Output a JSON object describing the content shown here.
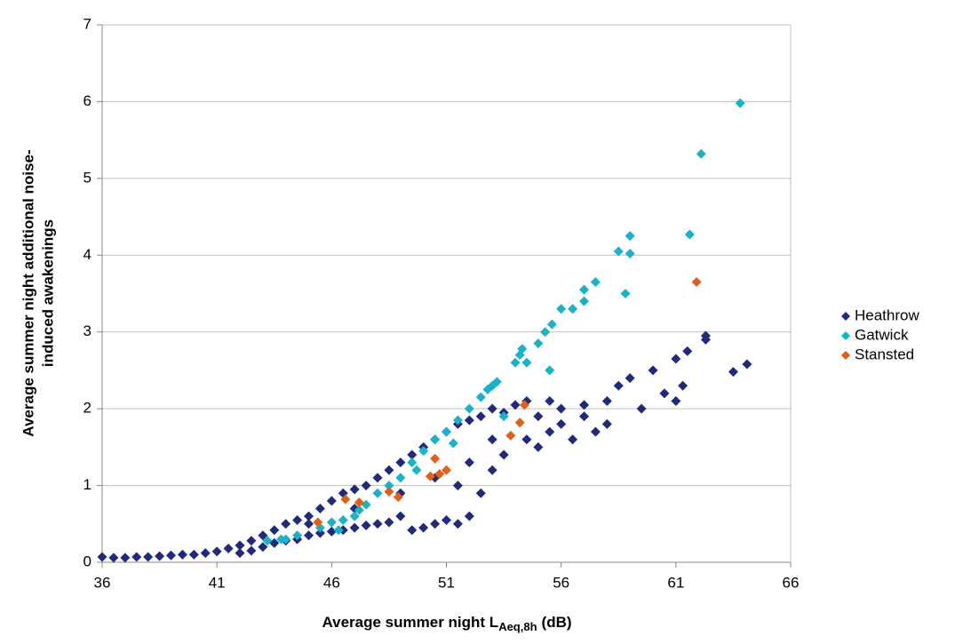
{
  "chart_data": {
    "type": "scatter",
    "x_label": [
      "Average summer night L",
      "Aeq,8h",
      "(dB)"
    ],
    "y_label": [
      "Average summer night additional noise-",
      "induced awakenings"
    ],
    "xlim": [
      36,
      66
    ],
    "xticks": [
      36,
      41,
      46,
      51,
      56,
      61,
      66
    ],
    "ylim": [
      0,
      7
    ],
    "yticks": [
      0,
      1,
      2,
      3,
      4,
      5,
      6,
      7
    ],
    "grid": true,
    "legend": "right",
    "series": [
      {
        "name": "Heathrow",
        "color": "#1f2a7c",
        "x": [
          36,
          36.5,
          37,
          37.5,
          38,
          38.5,
          39,
          39.5,
          40,
          40.5,
          41,
          41.5,
          42,
          42,
          42.5,
          42.5,
          43,
          43,
          43.5,
          43.5,
          44,
          44,
          44.5,
          44.5,
          45,
          45,
          45.5,
          45.5,
          46,
          46,
          46.5,
          46.5,
          47,
          47,
          47.5,
          47.5,
          48,
          48,
          48.5,
          48.5,
          49,
          49,
          49.5,
          49.5,
          50,
          50,
          50.5,
          50.5,
          51,
          51,
          51.5,
          51.5,
          52,
          52,
          52.5,
          52.5,
          53,
          53,
          53.5,
          53.5,
          54,
          54.5,
          54.5,
          55,
          55.5,
          55.5,
          56,
          56.5,
          57,
          57.5,
          58,
          58.5,
          58,
          59,
          59.5,
          60,
          60.5,
          61,
          61,
          61.3,
          61.5,
          62.3,
          62.3,
          63.5,
          64.1,
          52,
          50.5,
          49,
          47,
          45,
          51.5,
          53,
          56,
          55,
          57
        ],
        "values": [
          0.07,
          0.06,
          0.06,
          0.07,
          0.07,
          0.08,
          0.09,
          0.1,
          0.1,
          0.12,
          0.14,
          0.18,
          0.22,
          0.12,
          0.28,
          0.15,
          0.35,
          0.2,
          0.42,
          0.25,
          0.5,
          0.28,
          0.55,
          0.3,
          0.6,
          0.35,
          0.7,
          0.38,
          0.8,
          0.4,
          0.9,
          0.42,
          0.95,
          0.45,
          1.0,
          0.48,
          1.1,
          0.5,
          1.2,
          0.52,
          1.3,
          0.6,
          1.4,
          0.42,
          1.5,
          0.45,
          1.6,
          0.5,
          1.7,
          0.55,
          1.8,
          0.5,
          1.85,
          0.6,
          1.9,
          0.9,
          2.0,
          1.2,
          1.95,
          1.4,
          2.05,
          2.1,
          1.6,
          1.9,
          2.1,
          1.7,
          1.8,
          1.6,
          1.9,
          1.7,
          2.1,
          2.3,
          1.8,
          2.4,
          2.0,
          2.5,
          2.2,
          2.65,
          2.1,
          2.3,
          2.75,
          2.95,
          2.9,
          2.48,
          2.58,
          1.3,
          1.1,
          0.9,
          0.7,
          0.5,
          1.0,
          1.6,
          2.0,
          1.5,
          2.05
        ]
      },
      {
        "name": "Gatwick",
        "color": "#17b3c8",
        "x": [
          43.2,
          43.8,
          44.5,
          45.5,
          46,
          46.5,
          47,
          47.5,
          48,
          48.5,
          49,
          49.5,
          50,
          50.5,
          51,
          51.5,
          52,
          52.5,
          53,
          53.2,
          54,
          54.2,
          54.5,
          54.3,
          55,
          55.3,
          55.6,
          55.5,
          56,
          56.5,
          57,
          57,
          57.5,
          58.5,
          59,
          59,
          58.8,
          61.6,
          62.1,
          63.8,
          44,
          46.3,
          47.2,
          49.7,
          51.3,
          52.8,
          53.5
        ],
        "values": [
          0.28,
          0.3,
          0.35,
          0.45,
          0.52,
          0.55,
          0.6,
          0.75,
          0.9,
          1.0,
          1.1,
          1.3,
          1.45,
          1.6,
          1.7,
          1.85,
          2.0,
          2.15,
          2.3,
          2.35,
          2.6,
          2.7,
          2.6,
          2.78,
          2.85,
          3.0,
          3.1,
          2.5,
          3.3,
          3.3,
          3.4,
          3.55,
          3.65,
          4.05,
          4.25,
          4.02,
          3.5,
          4.27,
          5.32,
          5.98,
          0.3,
          0.42,
          0.68,
          1.2,
          1.55,
          2.25,
          1.9
        ]
      },
      {
        "name": "Stansted",
        "color": "#e0601a",
        "x": [
          45.4,
          46.6,
          47.2,
          48.5,
          48.9,
          50.3,
          50.5,
          50.7,
          51,
          53.8,
          54.2,
          54.4,
          61.9
        ],
        "values": [
          0.52,
          0.82,
          0.78,
          0.92,
          0.85,
          1.12,
          1.35,
          1.15,
          1.2,
          1.65,
          1.82,
          2.05,
          3.65
        ]
      }
    ]
  }
}
